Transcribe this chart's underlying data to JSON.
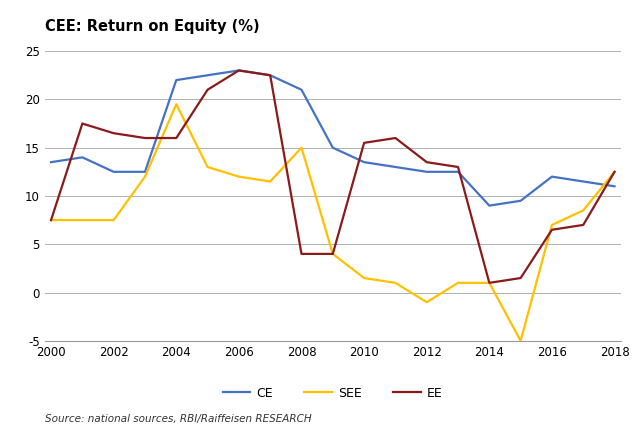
{
  "title": "CEE: Return on Equity (%)",
  "source": "Source: national sources, RBI/Raiffeisen RESEARCH",
  "years": [
    2000,
    2001,
    2002,
    2003,
    2004,
    2005,
    2006,
    2007,
    2008,
    2009,
    2010,
    2011,
    2012,
    2013,
    2014,
    2015,
    2016,
    2017,
    2018
  ],
  "CE": [
    13.5,
    14.0,
    12.5,
    12.5,
    22.0,
    22.5,
    23.0,
    22.5,
    21.0,
    15.0,
    13.5,
    13.0,
    12.5,
    12.5,
    9.0,
    9.5,
    12.0,
    11.5,
    11.0
  ],
  "SEE": [
    7.5,
    7.5,
    7.5,
    12.0,
    19.5,
    13.0,
    12.0,
    11.5,
    15.0,
    4.0,
    1.5,
    1.0,
    -1.0,
    1.0,
    1.0,
    -5.0,
    7.0,
    8.5,
    12.5
  ],
  "EE": [
    7.5,
    17.5,
    16.5,
    16.0,
    16.0,
    21.0,
    23.0,
    22.5,
    4.0,
    4.0,
    15.5,
    16.0,
    13.5,
    13.0,
    1.0,
    1.5,
    6.5,
    7.0,
    12.5
  ],
  "CE_color": "#4472C4",
  "SEE_color": "#FFC000",
  "EE_color": "#8B1A1A",
  "ylim": [
    -5,
    25
  ],
  "yticks": [
    -5,
    0,
    5,
    10,
    15,
    20,
    25
  ],
  "xlim": [
    2000,
    2018
  ],
  "xticks": [
    2000,
    2002,
    2004,
    2006,
    2008,
    2010,
    2012,
    2014,
    2016,
    2018
  ],
  "grid_color": "#b0b0b0",
  "bg_color": "#ffffff",
  "line_width": 1.6,
  "title_fontsize": 10.5,
  "tick_fontsize": 8.5,
  "legend_fontsize": 9,
  "source_fontsize": 7.5
}
